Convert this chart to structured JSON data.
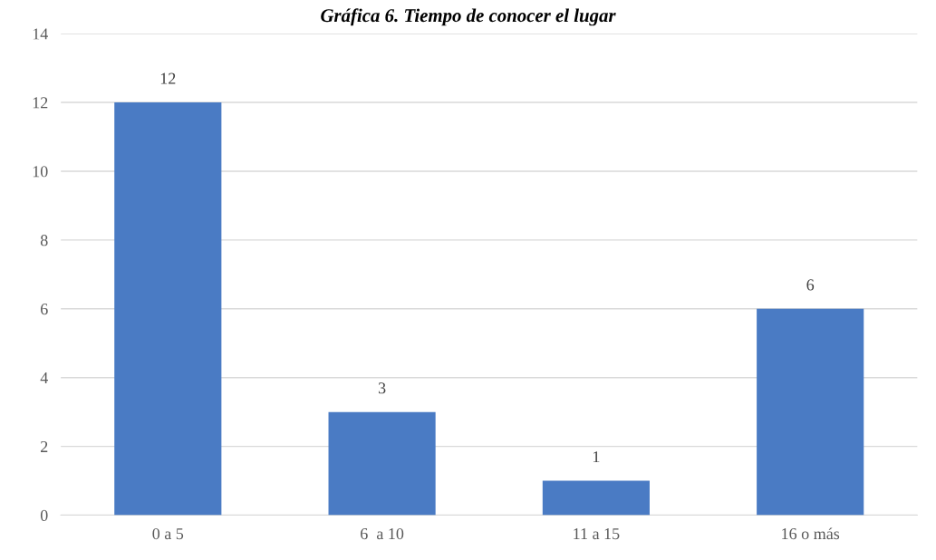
{
  "chart_data": {
    "type": "bar",
    "title": "Gráfica 6. Tiempo de conocer el lugar",
    "categories": [
      "0 a 5",
      "6  a 10",
      "11 a 15",
      "16 o más"
    ],
    "values": [
      12,
      3,
      1,
      6
    ],
    "color": "#4a7bc4",
    "ylim": [
      0,
      14
    ],
    "yticks": [
      0,
      2,
      4,
      6,
      8,
      10,
      12,
      14
    ],
    "grid": "y",
    "data_labels": true
  }
}
